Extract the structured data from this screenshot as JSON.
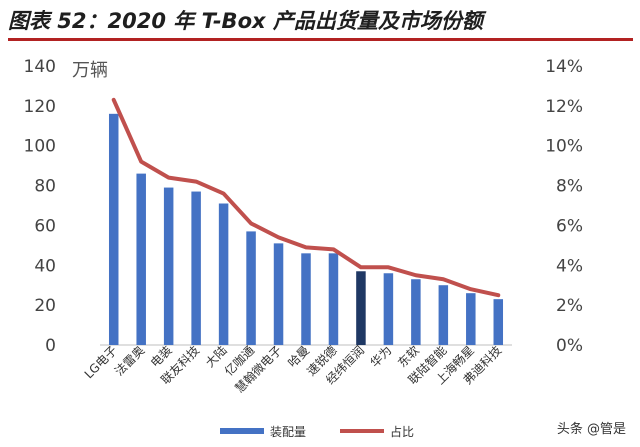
{
  "title": "图表 52：2020 年 T-Box 产品出货量及市场份额",
  "watermark": "头条 @管是",
  "colors": {
    "bar": "#4472c4",
    "bar_highlight": "#1f3864",
    "line": "#c0504d",
    "title_rule": "#b22222"
  },
  "chart_data": {
    "type": "bar",
    "title": "图表 52：2020 年 T-Box 产品出货量及市场份额",
    "unit_label": "万辆",
    "categories": [
      "LG电子",
      "法雷奥",
      "电装",
      "联友科技",
      "大陆",
      "亿咖通",
      "慧翰微电子",
      "哈曼",
      "速锐德",
      "经纬恒润",
      "华为",
      "东软",
      "联陆智能",
      "上海畅星",
      "弗迪科技"
    ],
    "series": [
      {
        "name": "装配量",
        "type": "bar",
        "axis": "left",
        "values": [
          116,
          86,
          79,
          77,
          71,
          57,
          51,
          46,
          46,
          37,
          36,
          33,
          30,
          26,
          23
        ]
      },
      {
        "name": "占比",
        "type": "line",
        "axis": "right",
        "values": [
          12.3,
          9.2,
          8.4,
          8.2,
          7.6,
          6.1,
          5.4,
          4.9,
          4.8,
          3.9,
          3.9,
          3.5,
          3.3,
          2.8,
          2.5
        ]
      }
    ],
    "highlight_index": 9,
    "y_left": {
      "min": 0,
      "max": 140,
      "ticks": [
        0,
        20,
        40,
        60,
        80,
        100,
        120,
        140
      ]
    },
    "y_right": {
      "min": 0,
      "max": 14,
      "ticks": [
        "0%",
        "2%",
        "4%",
        "6%",
        "8%",
        "10%",
        "12%",
        "14%"
      ]
    },
    "legend": {
      "position": "bottom",
      "items": [
        "装配量",
        "占比"
      ]
    },
    "grid": false
  }
}
